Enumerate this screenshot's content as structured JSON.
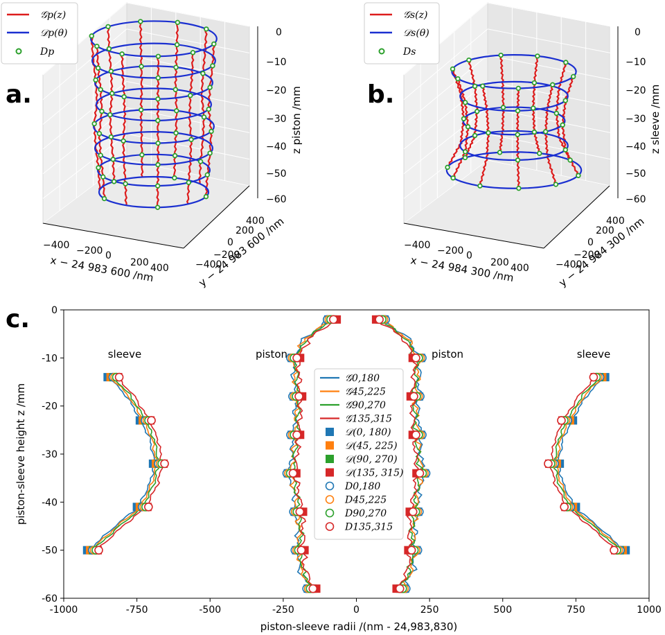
{
  "panel_labels": {
    "a": "a.",
    "b": "b.",
    "c": "c."
  },
  "chart_data": [
    {
      "type": "line3d",
      "panel": "a",
      "title": "",
      "xlabel": "x − 24 983 600 /nm",
      "ylabel": "y − 24 983 600 /nm",
      "zlabel": "z piston /mm",
      "x_ticks": [
        "−400",
        "−200",
        "0",
        "200",
        "400"
      ],
      "y_ticks": [
        "−400",
        "−200",
        "0",
        "200",
        "400"
      ],
      "z_ticks": [
        "0",
        "−10",
        "−20",
        "−30",
        "−40",
        "−50",
        "−60"
      ],
      "legend": [
        {
          "label": "𝒢p(z)",
          "color": "#dd1c1c",
          "marker": "line"
        },
        {
          "label": "𝒟p(θ)",
          "color": "#1a2fd0",
          "marker": "line"
        },
        {
          "label": "Dp",
          "color": "#2ca02c",
          "marker": "circle"
        }
      ],
      "rings_z": [
        -2,
        -10,
        -18,
        -26,
        -34,
        -42,
        -50,
        -58
      ],
      "ring_radius_nm": [
        230,
        225,
        215,
        210,
        220,
        215,
        205,
        200
      ]
    },
    {
      "type": "line3d",
      "panel": "b",
      "title": "",
      "xlabel": "x − 24 984 300 /nm",
      "ylabel": "y − 24 984 300 /nm",
      "zlabel": "z sleeve /mm",
      "x_ticks": [
        "−400",
        "−200",
        "0",
        "200",
        "400"
      ],
      "y_ticks": [
        "−400",
        "−200",
        "0",
        "200",
        "400"
      ],
      "z_ticks": [
        "0",
        "−10",
        "−20",
        "−30",
        "−40",
        "−50",
        "−60"
      ],
      "legend": [
        {
          "label": "𝒢s(z)",
          "color": "#dd1c1c",
          "marker": "line"
        },
        {
          "label": "𝒟s(θ)",
          "color": "#1a2fd0",
          "marker": "line"
        },
        {
          "label": "Ds",
          "color": "#2ca02c",
          "marker": "circle"
        }
      ],
      "rings_z": [
        -14,
        -23,
        -32,
        -41,
        -50
      ],
      "ring_radius_nm": [
        830,
        720,
        680,
        720,
        900
      ]
    },
    {
      "type": "line",
      "panel": "c",
      "title": "",
      "xlabel": "piston-sleeve radii /(nm - 24,983,830)",
      "ylabel": "piston-sleeve height z /mm",
      "xlim": [
        -1000,
        1000
      ],
      "ylim": [
        -60,
        0
      ],
      "x_ticks": [
        -1000,
        -750,
        -500,
        -250,
        0,
        250,
        500,
        750,
        1000
      ],
      "y_ticks": [
        0,
        -10,
        -20,
        -30,
        -40,
        -50,
        -60
      ],
      "annotations": [
        {
          "text": "sleeve",
          "x": -800,
          "y": -9
        },
        {
          "text": "piston",
          "x": -270,
          "y": -9
        },
        {
          "text": "piston",
          "x": 305,
          "y": -9
        },
        {
          "text": "sleeve",
          "x": 800,
          "y": -9
        }
      ],
      "legend": [
        {
          "label": "𝒢0,180",
          "color": "#1f77b4",
          "marker": "line"
        },
        {
          "label": "𝒢45,225",
          "color": "#ff7f0e",
          "marker": "line"
        },
        {
          "label": "𝒢90,270",
          "color": "#2ca02c",
          "marker": "line"
        },
        {
          "label": "𝒢135,315",
          "color": "#d62728",
          "marker": "line"
        },
        {
          "label": "𝒟(0, 180)",
          "color": "#1f77b4",
          "marker": "square"
        },
        {
          "label": "𝒟(45, 225)",
          "color": "#ff7f0e",
          "marker": "square"
        },
        {
          "label": "𝒟(90, 270)",
          "color": "#2ca02c",
          "marker": "square"
        },
        {
          "label": "𝒟(135, 315)",
          "color": "#d62728",
          "marker": "square"
        },
        {
          "label": "D0,180",
          "color": "#1f77b4",
          "marker": "circle"
        },
        {
          "label": "D45,225",
          "color": "#ff7f0e",
          "marker": "circle"
        },
        {
          "label": "D90,270",
          "color": "#2ca02c",
          "marker": "circle"
        },
        {
          "label": "D135,315",
          "color": "#d62728",
          "marker": "circle"
        }
      ],
      "series": [
        {
          "name": "𝒢0,180",
          "color": "#1f77b4",
          "offset": 10
        },
        {
          "name": "𝒢45,225",
          "color": "#ff7f0e",
          "offset": 5
        },
        {
          "name": "𝒢90,270",
          "color": "#2ca02c",
          "offset": 0
        },
        {
          "name": "𝒢135,315",
          "color": "#d62728",
          "offset": -8
        }
      ],
      "piston_profile": {
        "z": [
          -2,
          -6,
          -10,
          -14,
          -18,
          -22,
          -26,
          -30,
          -34,
          -38,
          -42,
          -46,
          -50,
          -54,
          -58
        ],
        "r": [
          80,
          170,
          205,
          205,
          198,
          200,
          205,
          210,
          218,
          205,
          195,
          190,
          190,
          185,
          150
        ]
      },
      "sleeve_profile": {
        "z": [
          -14,
          -18,
          -23,
          -27,
          -32,
          -36,
          -41,
          -45,
          -50
        ],
        "r": [
          830,
          770,
          720,
          690,
          675,
          690,
          730,
          810,
          900
        ]
      },
      "piston_points_z": [
        -2,
        -10,
        -18,
        -26,
        -34,
        -42,
        -50,
        -58
      ],
      "sleeve_points_z": [
        -14,
        -23,
        -32,
        -41,
        -50
      ]
    }
  ]
}
